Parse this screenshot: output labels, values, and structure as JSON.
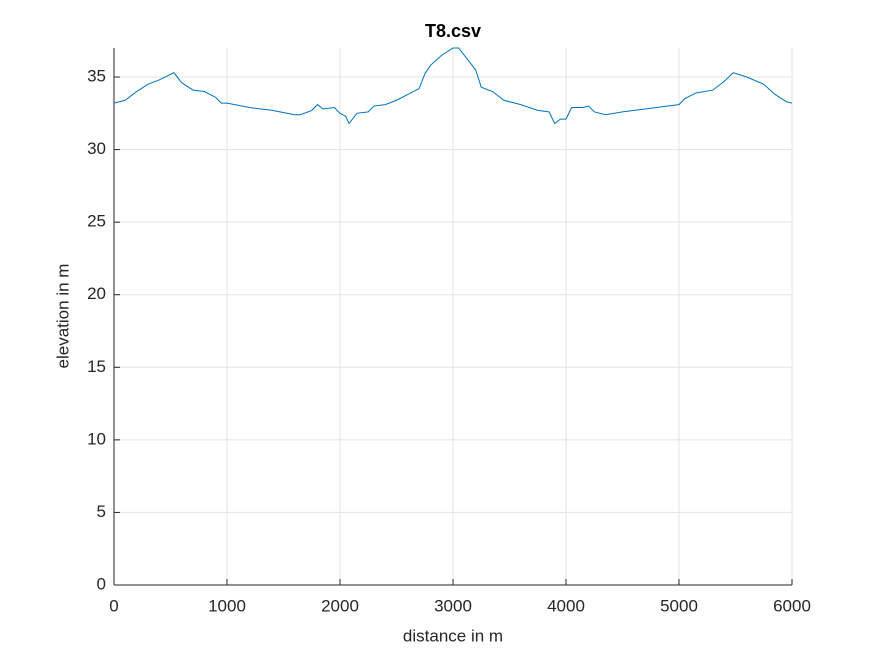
{
  "chart_data": {
    "type": "line",
    "title": "T8.csv",
    "xlabel": "distance in m",
    "ylabel": "elevation in m",
    "x": [
      0,
      100,
      200,
      300,
      400,
      530,
      600,
      700,
      800,
      900,
      950,
      1000,
      1200,
      1400,
      1600,
      1650,
      1750,
      1800,
      1850,
      1950,
      2000,
      2050,
      2080,
      2150,
      2250,
      2300,
      2400,
      2500,
      2600,
      2700,
      2750,
      2800,
      2900,
      3000,
      3050,
      3100,
      3200,
      3250,
      3350,
      3450,
      3600,
      3750,
      3850,
      3900,
      3950,
      4000,
      4050,
      4150,
      4200,
      4250,
      4350,
      4500,
      4700,
      4900,
      5000,
      5050,
      5150,
      5300,
      5400,
      5480,
      5600,
      5750,
      5850,
      5950,
      6000
    ],
    "values": [
      33.2,
      33.4,
      34.0,
      34.5,
      34.8,
      35.3,
      34.6,
      34.1,
      34.0,
      33.6,
      33.2,
      33.2,
      32.9,
      32.7,
      32.4,
      32.4,
      32.7,
      33.1,
      32.8,
      32.9,
      32.5,
      32.3,
      31.8,
      32.5,
      32.6,
      33.0,
      33.1,
      33.4,
      33.8,
      34.2,
      35.2,
      35.8,
      36.5,
      37.0,
      37.0,
      36.5,
      35.5,
      34.3,
      34.0,
      33.4,
      33.1,
      32.7,
      32.6,
      31.8,
      32.1,
      32.1,
      32.9,
      32.9,
      33.0,
      32.6,
      32.4,
      32.6,
      32.8,
      33.0,
      33.1,
      33.5,
      33.9,
      34.1,
      34.7,
      35.3,
      35.0,
      34.5,
      33.8,
      33.3,
      33.2
    ],
    "color": "#0072BD",
    "xlim": [
      0,
      6000
    ],
    "xticks": [
      0,
      1000,
      2000,
      3000,
      4000,
      5000,
      6000
    ],
    "ylim": [
      0,
      37
    ],
    "yticks": [
      0,
      5,
      10,
      15,
      20,
      25,
      30,
      35
    ],
    "grid": true
  }
}
